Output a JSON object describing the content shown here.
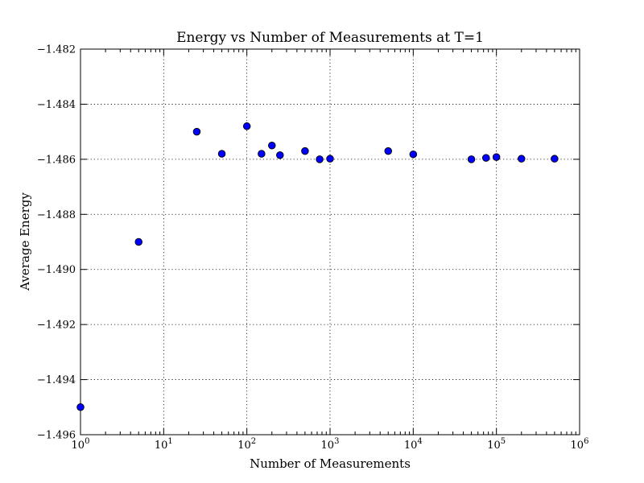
{
  "chart_data": {
    "type": "scatter",
    "title": "Energy vs Number of Measurements at T=1",
    "xlabel": "Number of Measurements",
    "ylabel": "Average Energy",
    "xscale": "log",
    "xlim": [
      1,
      1000000
    ],
    "ylim": [
      -1.496,
      -1.482
    ],
    "grid": true,
    "marker_color": "#0000ff",
    "marker_edge_color": "#000000",
    "x_ticks": [
      {
        "value": 1,
        "base": "10",
        "exp": "0"
      },
      {
        "value": 10,
        "base": "10",
        "exp": "1"
      },
      {
        "value": 100,
        "base": "10",
        "exp": "2"
      },
      {
        "value": 1000,
        "base": "10",
        "exp": "3"
      },
      {
        "value": 10000,
        "base": "10",
        "exp": "4"
      },
      {
        "value": 100000,
        "base": "10",
        "exp": "5"
      },
      {
        "value": 1000000,
        "base": "10",
        "exp": "6"
      }
    ],
    "y_ticks": [
      {
        "value": -1.496,
        "label": "−1.496"
      },
      {
        "value": -1.494,
        "label": "−1.494"
      },
      {
        "value": -1.492,
        "label": "−1.492"
      },
      {
        "value": -1.49,
        "label": "−1.490"
      },
      {
        "value": -1.488,
        "label": "−1.488"
      },
      {
        "value": -1.486,
        "label": "−1.486"
      },
      {
        "value": -1.484,
        "label": "−1.484"
      },
      {
        "value": -1.482,
        "label": "−1.482"
      }
    ],
    "points": [
      {
        "x": 1,
        "y": -1.495
      },
      {
        "x": 5,
        "y": -1.489
      },
      {
        "x": 25,
        "y": -1.485
      },
      {
        "x": 50,
        "y": -1.4858
      },
      {
        "x": 100,
        "y": -1.4848
      },
      {
        "x": 150,
        "y": -1.4858
      },
      {
        "x": 200,
        "y": -1.4855
      },
      {
        "x": 250,
        "y": -1.48585
      },
      {
        "x": 500,
        "y": -1.4857
      },
      {
        "x": 750,
        "y": -1.486
      },
      {
        "x": 1000,
        "y": -1.48598
      },
      {
        "x": 5000,
        "y": -1.4857
      },
      {
        "x": 10000,
        "y": -1.48582
      },
      {
        "x": 50000,
        "y": -1.486
      },
      {
        "x": 75000,
        "y": -1.48595
      },
      {
        "x": 100000,
        "y": -1.48592
      },
      {
        "x": 200000,
        "y": -1.48598
      },
      {
        "x": 500000,
        "y": -1.48598
      }
    ]
  }
}
